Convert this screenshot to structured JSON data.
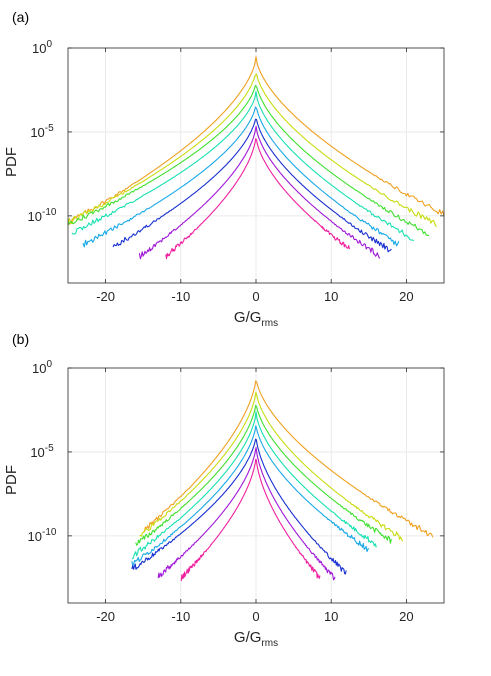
{
  "chart_data": [
    {
      "panel_label": "(a)",
      "type": "line",
      "xlabel": "G/G",
      "xlabel_subscript": "rms",
      "ylabel": "PDF",
      "xlim": [
        -25,
        25
      ],
      "ylim": [
        1e-14,
        1
      ],
      "y_scale": "log",
      "x_ticks": [
        -20,
        -10,
        0,
        10,
        20
      ],
      "x_tick_labels": [
        "-20",
        "-10",
        "0",
        "10",
        "20"
      ],
      "y_ticks": [
        1,
        1e-05,
        1e-10
      ],
      "y_tick_base": "10",
      "y_tick_exponents": [
        "0",
        "-5",
        "-10"
      ],
      "grid": true,
      "series": [
        {
          "color": "#f0a020",
          "peak": 0.3,
          "x_left": -25,
          "x_right": 25,
          "tail_left": 4e-11,
          "tail_right": 1.2e-10
        },
        {
          "color": "#c8dc10",
          "peak": 0.05,
          "x_left": -25,
          "x_right": 24,
          "tail_left": 4e-11,
          "tail_right": 3e-11
        },
        {
          "color": "#40e030",
          "peak": 0.01,
          "x_left": -25,
          "x_right": 23,
          "tail_left": 3e-11,
          "tail_right": 8e-12
        },
        {
          "color": "#18e0b0",
          "peak": 0.0025,
          "x_left": -24.5,
          "x_right": 21,
          "tail_left": 1e-11,
          "tail_right": 4e-12
        },
        {
          "color": "#18a8e8",
          "peak": 0.0005,
          "x_left": -23,
          "x_right": 19,
          "tail_left": 2e-12,
          "tail_right": 2e-12
        },
        {
          "color": "#1830d0",
          "peak": 0.0001,
          "x_left": -19,
          "x_right": 18,
          "tail_left": 1.5e-12,
          "tail_right": 8e-13
        },
        {
          "color": "#a018d8",
          "peak": 2.5e-05,
          "x_left": -15.5,
          "x_right": 16.5,
          "tail_left": 4e-13,
          "tail_right": 4e-13
        },
        {
          "color": "#f020a0",
          "peak": 6e-06,
          "x_left": -12,
          "x_right": 12.5,
          "tail_left": 4e-13,
          "tail_right": 1e-12
        }
      ]
    },
    {
      "panel_label": "(b)",
      "type": "line",
      "xlabel": "G/G",
      "xlabel_subscript": "rms",
      "ylabel": "PDF",
      "xlim": [
        -25,
        25
      ],
      "ylim": [
        1e-14,
        1
      ],
      "y_scale": "log",
      "x_ticks": [
        -20,
        -10,
        0,
        10,
        20
      ],
      "x_tick_labels": [
        "-20",
        "-10",
        "0",
        "10",
        "20"
      ],
      "y_ticks": [
        1,
        1e-05,
        1e-10
      ],
      "y_tick_base": "10",
      "y_tick_exponents": [
        "0",
        "-5",
        "-10"
      ],
      "grid": true,
      "series": [
        {
          "color": "#f0a020",
          "peak": 0.3,
          "x_left": -15,
          "x_right": 23.5,
          "tail_left": 2e-10,
          "tail_right": 1e-10
        },
        {
          "color": "#c8dc10",
          "peak": 0.05,
          "x_left": -15.5,
          "x_right": 19.5,
          "tail_left": 1e-10,
          "tail_right": 7e-11
        },
        {
          "color": "#40e030",
          "peak": 0.01,
          "x_left": -16,
          "x_right": 18,
          "tail_left": 3e-11,
          "tail_right": 5e-11
        },
        {
          "color": "#18e0b0",
          "peak": 0.0025,
          "x_left": -16.5,
          "x_right": 16,
          "tail_left": 6e-12,
          "tail_right": 3e-11
        },
        {
          "color": "#18a8e8",
          "peak": 0.0005,
          "x_left": -16.5,
          "x_right": 15,
          "tail_left": 2e-12,
          "tail_right": 1.5e-11
        },
        {
          "color": "#1830d0",
          "peak": 0.0001,
          "x_left": -16.5,
          "x_right": 12,
          "tail_left": 1e-12,
          "tail_right": 6e-13
        },
        {
          "color": "#a018d8",
          "peak": 2.5e-05,
          "x_left": -13,
          "x_right": 10.5,
          "tail_left": 4e-13,
          "tail_right": 3e-13
        },
        {
          "color": "#f020a0",
          "peak": 6e-06,
          "x_left": -10,
          "x_right": 8.5,
          "tail_left": 3e-13,
          "tail_right": 3e-13
        }
      ]
    }
  ]
}
